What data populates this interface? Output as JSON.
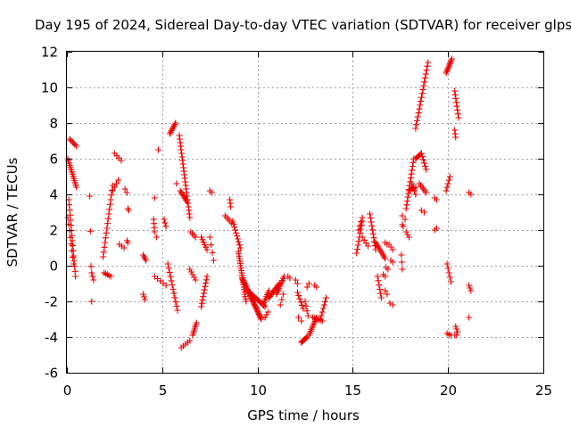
{
  "chart_data": {
    "type": "scatter",
    "title": "Day 195 of 2024, Sidereal Day-to-day VTEC variation (SDTVAR) for receiver glps",
    "xlabel": "GPS time / hours",
    "ylabel": "SDTVAR / TECUs",
    "xlim": [
      0,
      25
    ],
    "ylim": [
      -6,
      12
    ],
    "xticks": [
      0,
      5,
      10,
      15,
      20,
      25
    ],
    "yticks": [
      -6,
      -4,
      -2,
      0,
      2,
      4,
      6,
      8,
      10,
      12
    ],
    "grid": true,
    "marker": "plus",
    "color": "#ee0000",
    "segments": [
      {
        "x0": 0.05,
        "y0": 6.0,
        "x1": 0.5,
        "y1": 4.4,
        "n": 14
      },
      {
        "x0": 0.15,
        "y0": 7.1,
        "x1": 0.5,
        "y1": 6.7,
        "n": 6
      },
      {
        "x0": 0.1,
        "y0": 3.7,
        "x1": 0.45,
        "y1": -0.6,
        "n": 16
      },
      {
        "x0": 0.05,
        "y0": 2.7,
        "x1": 0.35,
        "y1": 0.1,
        "n": 8
      },
      {
        "x0": 1.2,
        "y0": 3.9,
        "x1": 1.3,
        "y1": -2.0,
        "n": 4
      },
      {
        "x0": 1.3,
        "y0": -0.4,
        "x1": 1.4,
        "y1": -0.8,
        "n": 3
      },
      {
        "x0": 1.9,
        "y0": 0.5,
        "x1": 2.4,
        "y1": 4.5,
        "n": 16
      },
      {
        "x0": 1.95,
        "y0": -0.4,
        "x1": 2.3,
        "y1": -0.6,
        "n": 5
      },
      {
        "x0": 2.4,
        "y0": 4.2,
        "x1": 2.7,
        "y1": 4.8,
        "n": 4
      },
      {
        "x0": 2.5,
        "y0": 6.3,
        "x1": 2.85,
        "y1": 5.9,
        "n": 4
      },
      {
        "x0": 2.75,
        "y0": 1.2,
        "x1": 3.0,
        "y1": 1.0,
        "n": 3
      },
      {
        "x0": 3.05,
        "y0": 4.3,
        "x1": 3.15,
        "y1": 4.1,
        "n": 2
      },
      {
        "x0": 3.2,
        "y0": 3.2,
        "x1": 3.25,
        "y1": 3.1,
        "n": 2
      },
      {
        "x0": 3.15,
        "y0": 1.4,
        "x1": 3.2,
        "y1": 1.3,
        "n": 2
      },
      {
        "x0": 4.0,
        "y0": 0.6,
        "x1": 4.15,
        "y1": 0.3,
        "n": 4
      },
      {
        "x0": 4.0,
        "y0": -1.6,
        "x1": 4.1,
        "y1": -1.9,
        "n": 3
      },
      {
        "x0": 4.55,
        "y0": 2.6,
        "x1": 4.6,
        "y1": 1.9,
        "n": 4
      },
      {
        "x0": 4.6,
        "y0": 3.8,
        "x1": 4.65,
        "y1": 3.8,
        "n": 1
      },
      {
        "x0": 4.7,
        "y0": 1.6,
        "x1": 4.7,
        "y1": 1.6,
        "n": 1
      },
      {
        "x0": 4.8,
        "y0": 6.5,
        "x1": 4.8,
        "y1": 6.5,
        "n": 1
      },
      {
        "x0": 4.6,
        "y0": -0.6,
        "x1": 5.2,
        "y1": -1.1,
        "n": 5
      },
      {
        "x0": 5.1,
        "y0": 2.6,
        "x1": 5.2,
        "y1": 2.2,
        "n": 3
      },
      {
        "x0": 5.3,
        "y0": 0.1,
        "x1": 5.8,
        "y1": -2.5,
        "n": 12
      },
      {
        "x0": 5.4,
        "y0": 7.4,
        "x1": 5.7,
        "y1": 8.0,
        "n": 8
      },
      {
        "x0": 5.75,
        "y0": 4.6,
        "x1": 5.75,
        "y1": 4.6,
        "n": 1
      },
      {
        "x0": 5.9,
        "y0": 7.3,
        "x1": 6.45,
        "y1": 2.7,
        "n": 24
      },
      {
        "x0": 5.95,
        "y0": 4.2,
        "x1": 6.3,
        "y1": 3.6,
        "n": 8
      },
      {
        "x0": 6.0,
        "y0": -4.6,
        "x1": 6.45,
        "y1": -4.2,
        "n": 5
      },
      {
        "x0": 6.5,
        "y0": 1.9,
        "x1": 6.75,
        "y1": 1.6,
        "n": 4
      },
      {
        "x0": 6.45,
        "y0": -0.2,
        "x1": 6.75,
        "y1": -0.8,
        "n": 5
      },
      {
        "x0": 6.6,
        "y0": -3.9,
        "x1": 6.8,
        "y1": -3.2,
        "n": 7
      },
      {
        "x0": 7.05,
        "y0": -2.3,
        "x1": 7.35,
        "y1": -0.6,
        "n": 10
      },
      {
        "x0": 7.05,
        "y0": 1.6,
        "x1": 7.35,
        "y1": 0.9,
        "n": 6
      },
      {
        "x0": 7.5,
        "y0": 4.2,
        "x1": 7.6,
        "y1": 4.1,
        "n": 2
      },
      {
        "x0": 7.5,
        "y0": 1.6,
        "x1": 7.7,
        "y1": 0.3,
        "n": 4
      },
      {
        "x0": 8.3,
        "y0": 2.8,
        "x1": 8.65,
        "y1": 2.4,
        "n": 5
      },
      {
        "x0": 8.55,
        "y0": 3.7,
        "x1": 8.6,
        "y1": 3.3,
        "n": 3
      },
      {
        "x0": 8.7,
        "y0": 2.5,
        "x1": 9.1,
        "y1": 1.0,
        "n": 10
      },
      {
        "x0": 9.0,
        "y0": 0.8,
        "x1": 9.4,
        "y1": -2.0,
        "n": 22
      },
      {
        "x0": 9.2,
        "y0": -0.7,
        "x1": 10.2,
        "y1": -3.0,
        "n": 34
      },
      {
        "x0": 9.4,
        "y0": -1.3,
        "x1": 10.4,
        "y1": -2.3,
        "n": 16
      },
      {
        "x0": 10.3,
        "y0": -2.2,
        "x1": 10.6,
        "y1": -1.4,
        "n": 8
      },
      {
        "x0": 10.4,
        "y0": -2.9,
        "x1": 10.55,
        "y1": -2.6,
        "n": 3
      },
      {
        "x0": 10.6,
        "y0": -1.8,
        "x1": 11.15,
        "y1": -1.0,
        "n": 12
      },
      {
        "x0": 11.0,
        "y0": -1.6,
        "x1": 11.4,
        "y1": -0.6,
        "n": 10
      },
      {
        "x0": 11.2,
        "y0": -2.2,
        "x1": 11.35,
        "y1": -1.6,
        "n": 3
      },
      {
        "x0": 11.6,
        "y0": -0.6,
        "x1": 11.7,
        "y1": -0.7,
        "n": 2
      },
      {
        "x0": 12.0,
        "y0": -0.8,
        "x1": 12.1,
        "y1": -1.0,
        "n": 2
      },
      {
        "x0": 12.1,
        "y0": -1.5,
        "x1": 12.4,
        "y1": -2.4,
        "n": 6
      },
      {
        "x0": 12.15,
        "y0": -2.9,
        "x1": 12.3,
        "y1": -3.1,
        "n": 2
      },
      {
        "x0": 12.3,
        "y0": -4.3,
        "x1": 12.6,
        "y1": -4.0,
        "n": 8
      },
      {
        "x0": 12.5,
        "y0": -2.0,
        "x1": 12.65,
        "y1": -2.8,
        "n": 4
      },
      {
        "x0": 12.6,
        "y0": -1.2,
        "x1": 12.7,
        "y1": -1.0,
        "n": 2
      },
      {
        "x0": 12.7,
        "y0": -3.9,
        "x1": 13.1,
        "y1": -2.9,
        "n": 10
      },
      {
        "x0": 12.9,
        "y0": -2.9,
        "x1": 13.4,
        "y1": -3.1,
        "n": 6
      },
      {
        "x0": 13.0,
        "y0": -1.1,
        "x1": 13.1,
        "y1": -1.2,
        "n": 2
      },
      {
        "x0": 13.3,
        "y0": -3.0,
        "x1": 13.6,
        "y1": -1.8,
        "n": 7
      },
      {
        "x0": 15.2,
        "y0": 0.7,
        "x1": 15.5,
        "y1": 2.5,
        "n": 9
      },
      {
        "x0": 15.3,
        "y0": 2.0,
        "x1": 15.5,
        "y1": 2.7,
        "n": 4
      },
      {
        "x0": 15.5,
        "y0": 1.6,
        "x1": 15.8,
        "y1": 1.1,
        "n": 4
      },
      {
        "x0": 15.9,
        "y0": 2.9,
        "x1": 16.2,
        "y1": 0.9,
        "n": 10
      },
      {
        "x0": 16.2,
        "y0": 1.3,
        "x1": 16.7,
        "y1": 0.4,
        "n": 10
      },
      {
        "x0": 16.3,
        "y0": -0.6,
        "x1": 16.5,
        "y1": -1.8,
        "n": 6
      },
      {
        "x0": 16.6,
        "y0": -0.5,
        "x1": 16.7,
        "y1": -0.6,
        "n": 2
      },
      {
        "x0": 16.7,
        "y0": 1.3,
        "x1": 16.8,
        "y1": 1.2,
        "n": 2
      },
      {
        "x0": 16.7,
        "y0": -1.4,
        "x1": 16.8,
        "y1": -1.6,
        "n": 2
      },
      {
        "x0": 16.75,
        "y0": -0.1,
        "x1": 16.85,
        "y1": -0.2,
        "n": 2
      },
      {
        "x0": 16.9,
        "y0": 1.2,
        "x1": 17.1,
        "y1": 0.9,
        "n": 3
      },
      {
        "x0": 16.95,
        "y0": -2.1,
        "x1": 17.1,
        "y1": -2.2,
        "n": 2
      },
      {
        "x0": 17.0,
        "y0": 0.3,
        "x1": 17.1,
        "y1": 0.2,
        "n": 2
      },
      {
        "x0": 17.6,
        "y0": 2.8,
        "x1": 17.75,
        "y1": 2.6,
        "n": 2
      },
      {
        "x0": 17.6,
        "y0": 2.3,
        "x1": 17.65,
        "y1": 2.2,
        "n": 2
      },
      {
        "x0": 17.55,
        "y0": 0.6,
        "x1": 17.6,
        "y1": -0.2,
        "n": 3
      },
      {
        "x0": 17.8,
        "y0": 3.2,
        "x1": 18.2,
        "y1": 6.0,
        "n": 14
      },
      {
        "x0": 17.8,
        "y0": 1.9,
        "x1": 17.95,
        "y1": 1.6,
        "n": 3
      },
      {
        "x0": 17.95,
        "y0": 4.2,
        "x1": 18.3,
        "y1": 4.4,
        "n": 5
      },
      {
        "x0": 18.1,
        "y0": 4.6,
        "x1": 18.3,
        "y1": 4.0,
        "n": 4
      },
      {
        "x0": 18.3,
        "y0": 6.0,
        "x1": 18.6,
        "y1": 6.3,
        "n": 6
      },
      {
        "x0": 18.3,
        "y0": 7.7,
        "x1": 18.95,
        "y1": 11.4,
        "n": 18
      },
      {
        "x0": 18.5,
        "y0": 4.6,
        "x1": 18.85,
        "y1": 4.1,
        "n": 6
      },
      {
        "x0": 18.6,
        "y0": 6.3,
        "x1": 18.85,
        "y1": 5.4,
        "n": 6
      },
      {
        "x0": 18.6,
        "y0": 3.1,
        "x1": 18.75,
        "y1": 3.0,
        "n": 2
      },
      {
        "x0": 19.3,
        "y0": 3.8,
        "x1": 19.4,
        "y1": 3.7,
        "n": 2
      },
      {
        "x0": 19.3,
        "y0": 2.0,
        "x1": 19.4,
        "y1": 2.1,
        "n": 2
      },
      {
        "x0": 19.9,
        "y0": 10.8,
        "x1": 20.2,
        "y1": 11.6,
        "n": 10
      },
      {
        "x0": 19.9,
        "y0": 4.2,
        "x1": 20.1,
        "y1": 5.0,
        "n": 5
      },
      {
        "x0": 19.95,
        "y0": 0.1,
        "x1": 20.15,
        "y1": -0.9,
        "n": 5
      },
      {
        "x0": 19.95,
        "y0": -3.8,
        "x1": 20.15,
        "y1": -3.9,
        "n": 3
      },
      {
        "x0": 20.35,
        "y0": 9.8,
        "x1": 20.55,
        "y1": 8.3,
        "n": 8
      },
      {
        "x0": 20.35,
        "y0": 7.6,
        "x1": 20.4,
        "y1": 7.2,
        "n": 3
      },
      {
        "x0": 20.4,
        "y0": -3.4,
        "x1": 20.5,
        "y1": -3.7,
        "n": 3
      },
      {
        "x0": 20.35,
        "y0": -3.9,
        "x1": 20.45,
        "y1": -3.9,
        "n": 2
      },
      {
        "x0": 21.1,
        "y0": 4.1,
        "x1": 21.2,
        "y1": 4.0,
        "n": 2
      },
      {
        "x0": 21.1,
        "y0": -1.1,
        "x1": 21.2,
        "y1": -1.4,
        "n": 3
      },
      {
        "x0": 21.1,
        "y0": -2.9,
        "x1": 21.15,
        "y1": -2.9,
        "n": 1
      }
    ]
  }
}
